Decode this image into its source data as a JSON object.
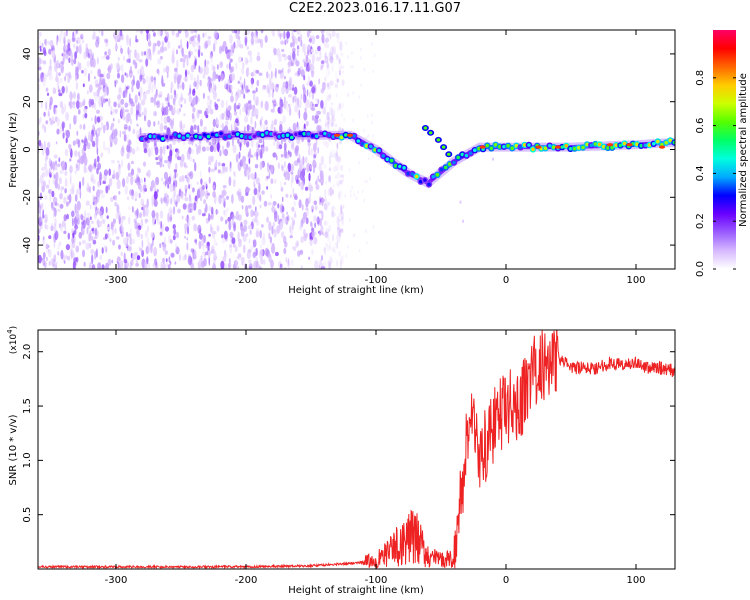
{
  "title": "C2E2.2023.016.17.11.G07",
  "colors": {
    "snr_line": "#ee2222",
    "colorbar_stops": [
      "#ffffff",
      "#d6b8ff",
      "#9a5cff",
      "#6a00ff",
      "#0000ff",
      "#00aaff",
      "#00ffdd",
      "#00ff66",
      "#55ff00",
      "#ccff00",
      "#ffcc00",
      "#ff6600",
      "#ff0000",
      "#ff0066"
    ]
  },
  "chart_data": [
    {
      "type": "heatmap",
      "xlabel": "Height of straight line (km)",
      "ylabel": "Frequency (Hz)",
      "xlim": [
        -360,
        130
      ],
      "ylim": [
        -50,
        50
      ],
      "xticks": [
        -300,
        -200,
        -100,
        0,
        100
      ],
      "yticks": [
        -40,
        -20,
        0,
        20,
        40
      ],
      "colorbar": {
        "label": "Normalized spectral amplitude",
        "range": [
          0.0,
          1.0
        ],
        "ticks": [
          0.0,
          0.2,
          0.4,
          0.6,
          0.8
        ]
      },
      "signal_trace": [
        {
          "x": -280,
          "y": 5
        },
        {
          "x": -200,
          "y": 6
        },
        {
          "x": -150,
          "y": 6
        },
        {
          "x": -120,
          "y": 6
        },
        {
          "x": -100,
          "y": 0
        },
        {
          "x": -75,
          "y": -10
        },
        {
          "x": -60,
          "y": -14
        },
        {
          "x": -40,
          "y": -5
        },
        {
          "x": -20,
          "y": 1
        },
        {
          "x": 0,
          "y": 1
        },
        {
          "x": 50,
          "y": 1
        },
        {
          "x": 100,
          "y": 2
        },
        {
          "x": 130,
          "y": 3
        }
      ],
      "noise_region": {
        "x_from": -360,
        "x_to": -140
      }
    },
    {
      "type": "line",
      "xlabel": "Height of straight line (km)",
      "ylabel": "SNR (10 * v/v)",
      "scale_label": "(x10",
      "scale_exp": "4",
      "scale_close": ")",
      "xlim": [
        -360,
        130
      ],
      "ylim": [
        0,
        2.2
      ],
      "xticks": [
        -300,
        -200,
        -100,
        0,
        100
      ],
      "yticks": [
        0.5,
        1.0,
        1.5,
        2.0
      ],
      "series": [
        {
          "x": [
            -360,
            -300,
            -200,
            -150,
            -120,
            -100,
            -90,
            -80,
            -70,
            -60,
            -50,
            -40,
            -35,
            -30,
            -25,
            -20,
            -10,
            0,
            10,
            20,
            30,
            40,
            50,
            60,
            70,
            80,
            90,
            100,
            110,
            120,
            130
          ],
          "values": [
            0.02,
            0.02,
            0.02,
            0.03,
            0.05,
            0.08,
            0.15,
            0.25,
            0.3,
            0.12,
            0.08,
            0.1,
            0.6,
            1.2,
            1.5,
            1.0,
            1.3,
            1.5,
            1.5,
            1.8,
            1.9,
            1.95,
            1.85,
            1.85,
            1.85,
            1.9,
            1.88,
            1.9,
            1.85,
            1.85,
            1.82
          ]
        }
      ]
    }
  ]
}
